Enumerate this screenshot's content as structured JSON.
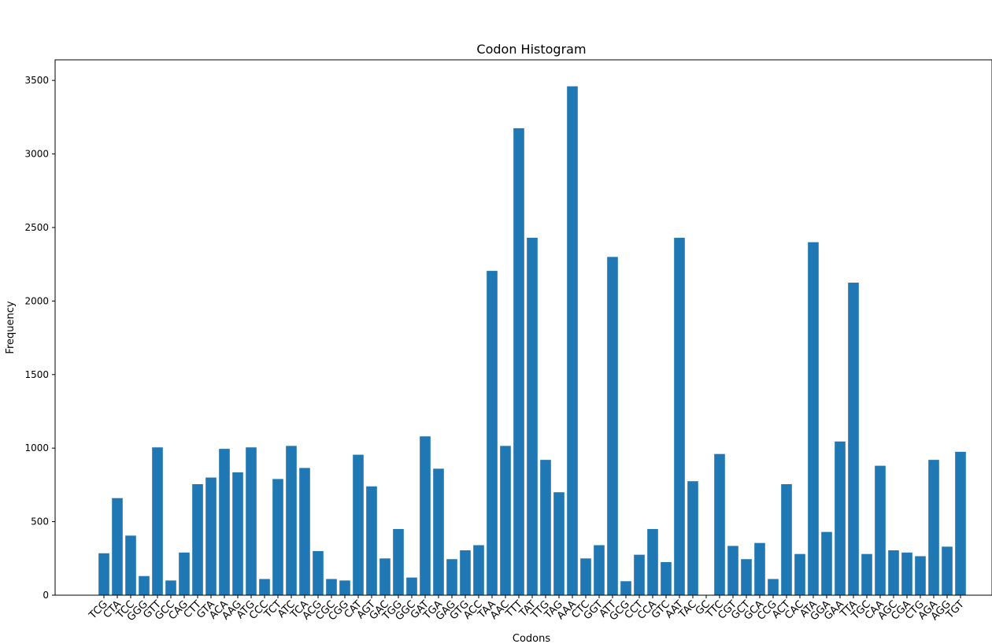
{
  "chart_data": {
    "type": "bar",
    "title": "Codon Histogram",
    "xlabel": "Codons",
    "ylabel": "Frequency",
    "ylim": [
      0,
      3640
    ],
    "yticks": [
      0,
      500,
      1000,
      1500,
      2000,
      2500,
      3000,
      3500
    ],
    "grid": false,
    "color": "#1f77b4",
    "categories": [
      "TCG",
      "CTA",
      "TCC",
      "GGG",
      "GTT",
      "GCC",
      "CAG",
      "CTT",
      "GTA",
      "ACA",
      "AAG",
      "ATG",
      "CCC",
      "TCT",
      "ATC",
      "TCA",
      "ACG",
      "CGC",
      "CGG",
      "CAT",
      "AGT",
      "GAC",
      "TGG",
      "GGC",
      "GAT",
      "TGA",
      "GAG",
      "GTG",
      "ACC",
      "TAA",
      "AAC",
      "TTT",
      "TAT",
      "TTG",
      "TAG",
      "AAA",
      "CTC",
      "GGT",
      "ATT",
      "GCG",
      "CCT",
      "CCA",
      "GTC",
      "AAT",
      "TAC",
      "GC",
      "TTC",
      "CGT",
      "GCT",
      "GCA",
      "CCG",
      "ACT",
      "CAC",
      "ATA",
      "GGA",
      "GAA",
      "TTA",
      "TGC",
      "CAA",
      "AGC",
      "CGA",
      "CTG",
      "AGA",
      "AGG",
      "TGT"
    ],
    "values": [
      285,
      660,
      405,
      130,
      1005,
      100,
      290,
      755,
      800,
      995,
      835,
      1005,
      110,
      790,
      1015,
      865,
      300,
      110,
      100,
      955,
      740,
      250,
      450,
      120,
      1080,
      860,
      245,
      305,
      340,
      2205,
      1015,
      3175,
      2430,
      920,
      700,
      3460,
      250,
      340,
      2300,
      95,
      275,
      450,
      225,
      2430,
      775,
      0,
      960,
      335,
      245,
      355,
      110,
      755,
      280,
      2400,
      430,
      1045,
      2125,
      280,
      880,
      305,
      290,
      265,
      920,
      330,
      975
    ]
  }
}
